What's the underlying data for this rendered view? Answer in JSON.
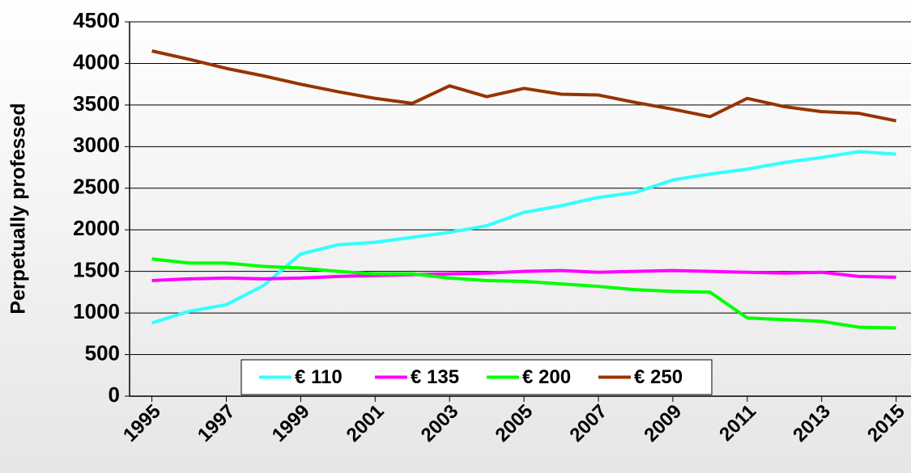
{
  "chart_data": {
    "type": "line",
    "y_label": "Perpetually professed",
    "x": [
      1995,
      1996,
      1997,
      1998,
      1999,
      2000,
      2001,
      2002,
      2003,
      2004,
      2005,
      2006,
      2007,
      2008,
      2009,
      2010,
      2011,
      2012,
      2013,
      2014,
      2015
    ],
    "xlim": [
      1994.4,
      2015.4
    ],
    "xticks": [
      1995,
      1997,
      1999,
      2001,
      2003,
      2005,
      2007,
      2009,
      2011,
      2013,
      2015
    ],
    "ylim": [
      0,
      4500
    ],
    "yticks": [
      0,
      500,
      1000,
      1500,
      2000,
      2500,
      3000,
      3500,
      4000,
      4500
    ],
    "grid": true,
    "legend": "lower center",
    "series": [
      {
        "name": "€ 110",
        "color": "#33ffff",
        "values": [
          880,
          1020,
          1100,
          1330,
          1710,
          1820,
          1850,
          1910,
          1970,
          2050,
          2210,
          2290,
          2390,
          2450,
          2600,
          2670,
          2730,
          2810,
          2870,
          2940,
          2910
        ]
      },
      {
        "name": "€ 135",
        "color": "#ff00ff",
        "values": [
          1390,
          1410,
          1420,
          1410,
          1420,
          1440,
          1450,
          1460,
          1470,
          1480,
          1500,
          1510,
          1490,
          1500,
          1510,
          1500,
          1490,
          1480,
          1490,
          1440,
          1430
        ]
      },
      {
        "name": "€ 200",
        "color": "#00ff00",
        "values": [
          1650,
          1600,
          1600,
          1560,
          1540,
          1500,
          1470,
          1470,
          1420,
          1390,
          1380,
          1350,
          1320,
          1280,
          1260,
          1250,
          940,
          920,
          900,
          830,
          820
        ]
      },
      {
        "name": "€ 250",
        "color": "#993300",
        "values": [
          4150,
          4050,
          3940,
          3850,
          3750,
          3660,
          3580,
          3520,
          3730,
          3600,
          3700,
          3630,
          3620,
          3530,
          3450,
          3360,
          3580,
          3480,
          3420,
          3400,
          3310
        ]
      }
    ]
  }
}
